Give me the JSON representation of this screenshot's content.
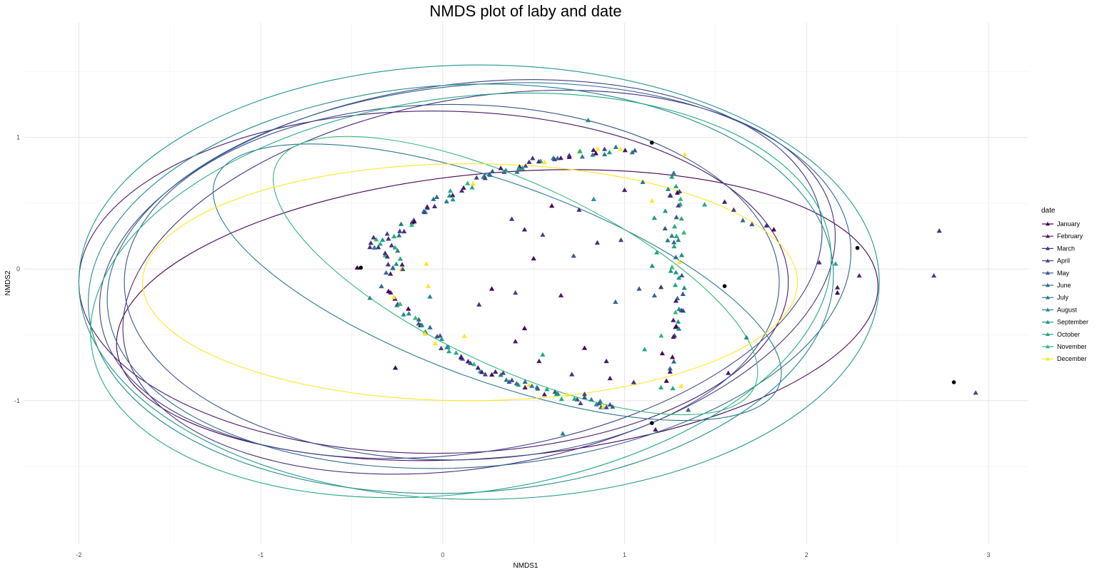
{
  "chart_data": {
    "type": "scatter",
    "title": "NMDS plot of laby and date",
    "xlabel": "NMDS1",
    "ylabel": "NMDS2",
    "xlim": [
      -2.3,
      3.22
    ],
    "ylim": [
      -2.09,
      1.87
    ],
    "xticks": [
      -2,
      -1,
      0,
      1,
      2,
      3
    ],
    "yticks": [
      -1,
      0,
      1
    ],
    "grid": true,
    "legend": {
      "title": "date",
      "position": "right",
      "entries": [
        "January",
        "February",
        "March",
        "April",
        "May",
        "June",
        "July",
        "August",
        "September",
        "October",
        "November",
        "December"
      ]
    },
    "series_colors": [
      "#440154",
      "#481a6c",
      "#472f7d",
      "#414487",
      "#39568c",
      "#31688e",
      "#2a788e",
      "#23888e",
      "#1f988b",
      "#22a884",
      "#35b779",
      "#fde725"
    ],
    "ellipses": [
      {
        "series": "January",
        "cx": 0.3,
        "cy": -0.35,
        "rx": 2.1,
        "ry": 1.08,
        "angle": -5
      },
      {
        "series": "February",
        "cx": -0.05,
        "cy": -0.1,
        "rx": 1.95,
        "ry": 1.3,
        "angle": 0
      },
      {
        "series": "March",
        "cx": 0.2,
        "cy": -0.1,
        "rx": 1.98,
        "ry": 1.4,
        "angle": -10
      },
      {
        "series": "April",
        "cx": 0.1,
        "cy": 0.0,
        "rx": 2.0,
        "ry": 1.4,
        "angle": -8
      },
      {
        "series": "May",
        "cx": 0.05,
        "cy": -0.1,
        "rx": 1.8,
        "ry": 1.35,
        "angle": 0
      },
      {
        "series": "June",
        "cx": 0.2,
        "cy": -0.05,
        "rx": 2.05,
        "ry": 1.45,
        "angle": -5
      },
      {
        "series": "July",
        "cx": 0.3,
        "cy": -0.1,
        "rx": 1.65,
        "ry": 0.75,
        "angle": 20
      },
      {
        "series": "August",
        "cx": 0.1,
        "cy": -0.15,
        "rx": 2.05,
        "ry": 1.55,
        "angle": -3
      },
      {
        "series": "September",
        "cx": 0.2,
        "cy": -0.1,
        "rx": 2.2,
        "ry": 1.65,
        "angle": 0
      },
      {
        "series": "October",
        "cx": 0.1,
        "cy": -0.2,
        "rx": 2.05,
        "ry": 1.5,
        "angle": -8
      },
      {
        "series": "November",
        "cx": 0.4,
        "cy": -0.05,
        "rx": 1.45,
        "ry": 0.7,
        "angle": 25
      },
      {
        "series": "December",
        "cx": 0.15,
        "cy": -0.1,
        "rx": 1.8,
        "ry": 0.9,
        "angle": 0
      }
    ],
    "centroids": [
      {
        "x": -0.45,
        "y": 0.01
      },
      {
        "x": 1.15,
        "y": 0.96
      },
      {
        "x": 1.55,
        "y": -0.13
      },
      {
        "x": 2.28,
        "y": 0.16
      },
      {
        "x": 2.81,
        "y": -0.86
      },
      {
        "x": 1.15,
        "y": -1.17
      }
    ],
    "point_groups": [
      {
        "name": "left-arc-upper",
        "from": [
          -0.3,
          0.22
        ],
        "to": [
          1.05,
          0.91
        ],
        "n": 70,
        "jitter": 0.03,
        "bow": 0.18
      },
      {
        "name": "left-arc-lower",
        "from": [
          -0.32,
          -0.15
        ],
        "to": [
          0.92,
          -1.04
        ],
        "n": 70,
        "jitter": 0.03,
        "bow": -0.18
      },
      {
        "name": "left-cluster",
        "from": [
          -0.35,
          0.25
        ],
        "to": [
          -0.25,
          -0.05
        ],
        "n": 24,
        "jitter": 0.06,
        "bow": 0
      },
      {
        "name": "right-column",
        "from": [
          1.3,
          0.62
        ],
        "to": [
          1.3,
          -0.5
        ],
        "n": 28,
        "jitter": 0.03,
        "bow": 0
      },
      {
        "name": "mid-column",
        "from": [
          1.2,
          0.62
        ],
        "to": [
          1.25,
          -0.9
        ],
        "n": 28,
        "jitter": 0.07,
        "bow": 0
      }
    ],
    "scatter_points": [
      {
        "x": -0.47,
        "y": 0.01,
        "s": 0
      },
      {
        "x": -0.4,
        "y": -0.22,
        "s": 7
      },
      {
        "x": -0.26,
        "y": -0.75,
        "s": 0
      },
      {
        "x": 0.8,
        "y": 1.13,
        "s": 7
      },
      {
        "x": 0.83,
        "y": 0.53,
        "s": 8
      },
      {
        "x": 1.44,
        "y": 0.49,
        "s": 9
      },
      {
        "x": 1.55,
        "y": 0.51,
        "s": 1
      },
      {
        "x": 1.6,
        "y": 0.45,
        "s": 3
      },
      {
        "x": 1.65,
        "y": 0.37,
        "s": 5
      },
      {
        "x": 1.7,
        "y": 0.34,
        "s": 4
      },
      {
        "x": 1.78,
        "y": 0.33,
        "s": 2
      },
      {
        "x": 1.82,
        "y": 0.3,
        "s": 0
      },
      {
        "x": 2.07,
        "y": 0.05,
        "s": 2
      },
      {
        "x": 2.16,
        "y": 0.04,
        "s": 9
      },
      {
        "x": 2.17,
        "y": -0.14,
        "s": 1
      },
      {
        "x": 2.17,
        "y": -0.18,
        "s": 0
      },
      {
        "x": 2.29,
        "y": -0.05,
        "s": 2
      },
      {
        "x": 2.7,
        "y": -0.05,
        "s": 3
      },
      {
        "x": 2.73,
        "y": 0.29,
        "s": 2
      },
      {
        "x": 2.93,
        "y": -0.94,
        "s": 3
      },
      {
        "x": 1.57,
        "y": -0.79,
        "s": 1
      },
      {
        "x": 1.67,
        "y": -0.52,
        "s": 7
      },
      {
        "x": 1.35,
        "y": -1.07,
        "s": 5
      },
      {
        "x": 0.66,
        "y": -1.25,
        "s": 6
      },
      {
        "x": 1.17,
        "y": -1.22,
        "s": 1
      },
      {
        "x": 0.38,
        "y": 0.38,
        "s": 2
      },
      {
        "x": 0.45,
        "y": 0.3,
        "s": 1
      },
      {
        "x": 0.55,
        "y": 0.26,
        "s": 3
      },
      {
        "x": 0.5,
        "y": 0.08,
        "s": 0
      },
      {
        "x": 0.72,
        "y": 0.1,
        "s": 4
      },
      {
        "x": 0.85,
        "y": 0.2,
        "s": 2
      },
      {
        "x": 0.65,
        "y": -0.2,
        "s": 1
      },
      {
        "x": 0.4,
        "y": -0.18,
        "s": 3
      },
      {
        "x": 0.27,
        "y": -0.15,
        "s": 0
      },
      {
        "x": 0.2,
        "y": -0.27,
        "s": 2
      },
      {
        "x": 0.45,
        "y": -0.45,
        "s": 0
      },
      {
        "x": 0.55,
        "y": -0.65,
        "s": 9
      },
      {
        "x": 0.78,
        "y": -0.6,
        "s": 0
      },
      {
        "x": 0.9,
        "y": -0.7,
        "s": 1
      },
      {
        "x": 0.6,
        "y": 0.48,
        "s": 0
      },
      {
        "x": 0.75,
        "y": 0.45,
        "s": 2
      },
      {
        "x": -0.09,
        "y": 0.04,
        "s": 11
      },
      {
        "x": -0.08,
        "y": -0.13,
        "s": 11
      },
      {
        "x": -0.07,
        "y": -0.21,
        "s": 7
      },
      {
        "x": 0.12,
        "y": -0.51,
        "s": 11
      },
      {
        "x": 1.33,
        "y": 0.87,
        "s": 11
      },
      {
        "x": 1.11,
        "y": -0.61,
        "s": 9
      },
      {
        "x": 0.98,
        "y": 0.22,
        "s": 3
      },
      {
        "x": 1.08,
        "y": -0.15,
        "s": 4
      },
      {
        "x": 0.4,
        "y": -0.55,
        "s": 1
      },
      {
        "x": 0.95,
        "y": -0.25,
        "s": 5
      },
      {
        "x": 0.92,
        "y": -0.83,
        "s": 1
      },
      {
        "x": 0.53,
        "y": -0.7,
        "s": 1
      },
      {
        "x": 0.71,
        "y": -0.8,
        "s": 2
      },
      {
        "x": 0.78,
        "y": -0.95,
        "s": 3
      },
      {
        "x": 0.86,
        "y": -1.02,
        "s": 4
      },
      {
        "x": 0.92,
        "y": -1.03,
        "s": 4
      },
      {
        "x": 0.9,
        "y": -1.05,
        "s": 3
      },
      {
        "x": 1.05,
        "y": -0.86,
        "s": 2
      },
      {
        "x": 1.25,
        "y": -0.78,
        "s": 1
      },
      {
        "x": 1.23,
        "y": -0.85,
        "s": 0
      },
      {
        "x": 1.2,
        "y": -0.9,
        "s": 9
      },
      {
        "x": 1.0,
        "y": 0.6,
        "s": 1
      },
      {
        "x": 1.1,
        "y": 0.66,
        "s": 6
      },
      {
        "x": 1.26,
        "y": 0.7,
        "s": 8
      },
      {
        "x": 1.27,
        "y": 0.73,
        "s": 7
      },
      {
        "x": 1.29,
        "y": 0.58,
        "s": 0
      },
      {
        "x": 1.25,
        "y": 0.56,
        "s": 2
      }
    ]
  }
}
